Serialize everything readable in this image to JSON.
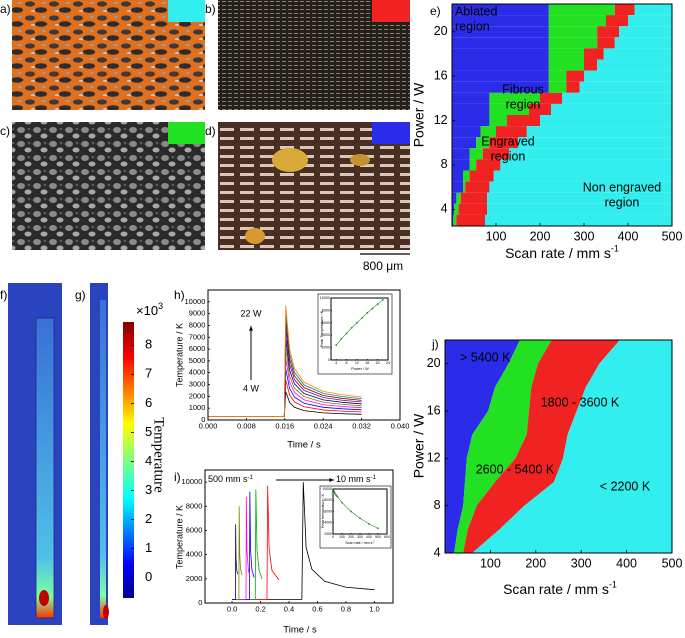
{
  "panel_labels": [
    "a)",
    "b)",
    "c)",
    "d)",
    "e)",
    "f)",
    "g)",
    "h)",
    "i)",
    "j)"
  ],
  "scale_bar": "800 μm",
  "colorbar": {
    "multiplier": "×10",
    "multiplier_sup": "3",
    "label": "Temperature",
    "ylim": [
      -0.7,
      8.8
    ],
    "yticks": [
      0,
      1,
      2,
      3,
      4,
      5,
      6,
      7,
      8
    ]
  },
  "chart_data": [
    {
      "type": "region_map",
      "xlabel": "Scan rate / mm s",
      "xlabel_sup": "-1",
      "ylabel": "Power / W",
      "xlim": [
        0,
        500
      ],
      "xticks": [
        100,
        200,
        300,
        400,
        500
      ],
      "ylim": [
        2.5,
        22.5
      ],
      "yticks": [
        4,
        8,
        12,
        16,
        20
      ],
      "power": [
        3,
        4,
        5,
        6,
        7,
        8,
        9,
        10,
        11,
        12,
        13,
        14,
        15,
        16,
        17,
        18,
        19,
        20,
        21,
        22
      ],
      "regions": [
        {
          "label": [
            "Ablated",
            "region"
          ],
          "color": "#2b2bea",
          "right_edge": [
            3,
            5,
            10,
            25,
            25,
            40,
            40,
            55,
            65,
            85,
            85,
            85,
            220,
            220,
            220,
            220,
            220,
            220,
            220,
            220
          ]
        },
        {
          "label": [
            "Fibrous",
            "region"
          ],
          "color": "#22e022",
          "right_edge": [
            10,
            15,
            20,
            30,
            40,
            55,
            70,
            85,
            100,
            125,
            175,
            200,
            260,
            260,
            300,
            300,
            330,
            330,
            350,
            370
          ]
        },
        {
          "label": [
            "Engraved",
            "region"
          ],
          "color": "#f02222",
          "right_edge": [
            75,
            80,
            80,
            85,
            95,
            110,
            130,
            150,
            170,
            200,
            225,
            250,
            290,
            300,
            330,
            345,
            370,
            380,
            400,
            415
          ]
        },
        {
          "label": [
            "Non engraved",
            "region"
          ],
          "color": "#33eeee"
        }
      ]
    },
    {
      "type": "line",
      "xlabel": "Time / s",
      "ylabel": "Temperature / K",
      "xlim": [
        0,
        0.04
      ],
      "xticks": [
        {
          "value": 0,
          "label": "0.000"
        },
        {
          "value": 0.008,
          "label": "0.008"
        },
        {
          "value": 0.016,
          "label": "0.016"
        },
        {
          "value": 0.024,
          "label": "0.024"
        },
        {
          "value": 0.032,
          "label": "0.032"
        },
        {
          "value": 0.04,
          "label": "0.040"
        }
      ],
      "ylim": [
        0,
        11000
      ],
      "yticks": [
        0,
        1000,
        2000,
        3000,
        4000,
        5000,
        6000,
        7000,
        8000,
        9000,
        10000
      ],
      "x": [
        0,
        0.0159,
        0.0162,
        0.017,
        0.018,
        0.02,
        0.024,
        0.028,
        0.032
      ],
      "series": [
        {
          "color": "#000000",
          "values": [
            300,
            300,
            2400,
            1488,
            1080,
            792,
            600,
            528,
            480
          ]
        },
        {
          "color": "#ff0000",
          "values": [
            300,
            300,
            3400,
            2108,
            1530,
            1122,
            850,
            748,
            680
          ]
        },
        {
          "color": "#0000ff",
          "values": [
            300,
            300,
            4300,
            2666,
            1935,
            1419,
            1075,
            946,
            860
          ]
        },
        {
          "color": "#ff00ff",
          "values": [
            300,
            300,
            5200,
            3224,
            2340,
            1716,
            1300,
            1144,
            1040
          ]
        },
        {
          "color": "#808000",
          "values": [
            300,
            300,
            6000,
            3720,
            2700,
            1980,
            1500,
            1320,
            1200
          ]
        },
        {
          "color": "#000080",
          "values": [
            300,
            300,
            6800,
            4216,
            3060,
            2244,
            1700,
            1496,
            1360
          ]
        },
        {
          "color": "#800080",
          "values": [
            300,
            300,
            7600,
            4712,
            3420,
            2508,
            1900,
            1672,
            1520
          ]
        },
        {
          "color": "#800000",
          "values": [
            300,
            300,
            8300,
            5146,
            3735,
            2739,
            2075,
            1826,
            1660
          ]
        },
        {
          "color": "#008080",
          "values": [
            300,
            300,
            9000,
            5580,
            4050,
            2970,
            2250,
            1980,
            1800
          ]
        },
        {
          "color": "#ff8000",
          "values": [
            300,
            300,
            9700,
            6014,
            4365,
            3201,
            2425,
            2134,
            1940
          ]
        }
      ],
      "annotation_top": "22 W",
      "annotation_bottom": "4 W",
      "inset": {
        "type": "scatter",
        "xlabel": "Power / W",
        "ylabel": "Peak Temperature / K",
        "color": "#2a8a2a",
        "xlim": [
          2,
          24
        ],
        "xticks": [
          4,
          8,
          12,
          16,
          20,
          24
        ],
        "ylim": [
          0,
          10000
        ],
        "yticks": [
          0,
          2000,
          4000,
          6000,
          8000,
          10000
        ],
        "x": [
          4,
          6,
          8,
          10,
          12,
          14,
          16,
          18,
          20,
          22
        ],
        "values": [
          2400,
          3400,
          4300,
          5200,
          6000,
          6800,
          7600,
          8300,
          9000,
          9700
        ]
      }
    },
    {
      "type": "line",
      "xlabel": "Time / s",
      "ylabel": "Temperature / K",
      "xlim": [
        -0.19,
        1.13
      ],
      "xticks": [
        {
          "value": 0,
          "label": "0.0"
        },
        {
          "value": 0.2,
          "label": "0.2"
        },
        {
          "value": 0.4,
          "label": "0.4"
        },
        {
          "value": 0.6,
          "label": "0.6"
        },
        {
          "value": 0.8,
          "label": "0.8"
        },
        {
          "value": 1,
          "label": "1.0"
        }
      ],
      "ylim": [
        0,
        11000
      ],
      "yticks": [
        0,
        2000,
        4000,
        6000,
        8000,
        10000
      ],
      "series": [
        {
          "color": "#000000",
          "x": [
            0,
            0.49,
            0.5,
            0.52,
            0.56,
            0.65,
            0.8,
            1.0
          ],
          "values": [
            300,
            300,
            10000,
            4600,
            2800,
            1800,
            1300,
            1100
          ]
        },
        {
          "color": "#ff0000",
          "x": [
            0,
            0.245,
            0.25,
            0.26,
            0.28,
            0.33
          ],
          "values": [
            300,
            300,
            9700,
            4500,
            2700,
            1900
          ]
        },
        {
          "color": "#00b000",
          "x": [
            0,
            0.163,
            0.167,
            0.175,
            0.19,
            0.21
          ],
          "values": [
            300,
            300,
            9400,
            4400,
            2700,
            2000
          ]
        },
        {
          "color": "#0000ff",
          "x": [
            0,
            0.122,
            0.125,
            0.13,
            0.14,
            0.155
          ],
          "values": [
            300,
            300,
            9200,
            4300,
            2700,
            2100
          ]
        },
        {
          "color": "#ff00ff",
          "x": [
            0,
            0.098,
            0.1,
            0.105,
            0.115,
            0.125
          ],
          "values": [
            300,
            300,
            8800,
            4200,
            2700,
            2200
          ]
        },
        {
          "color": "#808000",
          "x": [
            0,
            0.048,
            0.05,
            0.054,
            0.06,
            0.07
          ],
          "values": [
            300,
            300,
            8000,
            4000,
            2800,
            2300
          ]
        },
        {
          "color": "#000080",
          "x": [
            0,
            0.024,
            0.025,
            0.028,
            0.033,
            0.04
          ],
          "values": [
            300,
            300,
            6500,
            3600,
            2700,
            2400
          ]
        }
      ],
      "annotation_start": {
        "text": "500 mm s",
        "sup": "-1"
      },
      "annotation_end": {
        "text": "10 mm s",
        "sup": "-1"
      },
      "inset": {
        "type": "scatter",
        "xlabel": "Scan rate / mm s",
        "xlabel_sup": "-1",
        "ylabel": "Peak temperature / K",
        "color": "#2a8a2a",
        "xlim": [
          0,
          600
        ],
        "xticks": [
          0,
          100,
          200,
          300,
          400,
          500,
          600
        ],
        "ylim": [
          2000,
          10000
        ],
        "yticks": [
          2000,
          4000,
          6000,
          8000,
          10000
        ],
        "x": [
          10,
          20,
          30,
          40,
          50,
          100,
          200,
          300,
          400,
          500
        ],
        "values": [
          9600,
          9300,
          9000,
          8800,
          8600,
          7600,
          6000,
          4800,
          3800,
          3000
        ]
      }
    },
    {
      "type": "contour_map",
      "xlabel": "Scan rate / mm s",
      "xlabel_sup": "-1",
      "ylabel": "Power / W",
      "xlim": [
        0,
        500
      ],
      "xticks": [
        100,
        200,
        300,
        400,
        500
      ],
      "ylim": [
        4,
        22
      ],
      "yticks": [
        4,
        8,
        12,
        16,
        20
      ],
      "power": [
        4,
        6,
        8,
        10,
        12,
        14,
        16,
        18,
        20,
        22
      ],
      "regions": [
        {
          "label": "> 5400 K",
          "color": "#2b2bea",
          "right_edge": [
            20,
            28,
            40,
            44,
            48,
            60,
            95,
            110,
            140,
            165
          ]
        },
        {
          "label": "2600 - 5400 K",
          "color": "#22e022",
          "right_edge": [
            40,
            50,
            70,
            110,
            155,
            180,
            185,
            190,
            205,
            235
          ]
        },
        {
          "label": "1800 - 3600 K",
          "color": "#f02222",
          "right_edge": [
            60,
            120,
            175,
            240,
            260,
            270,
            290,
            310,
            340,
            385
          ]
        },
        {
          "label": "< 2200 K",
          "color": "#33eeee"
        }
      ]
    }
  ]
}
